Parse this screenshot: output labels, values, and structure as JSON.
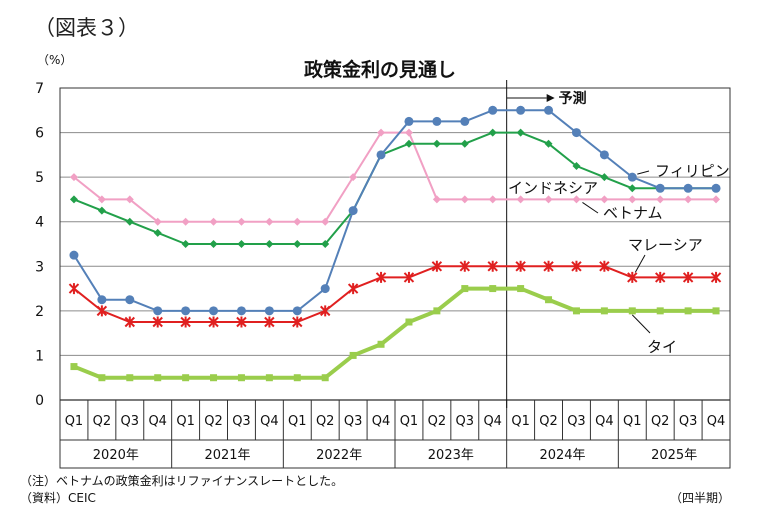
{
  "figure_label": "（図表３）",
  "chart_data": {
    "type": "line",
    "title": "政策金利の見通し",
    "yunit": "（%）",
    "ylim": [
      0,
      7
    ],
    "yticks": [
      0,
      1,
      2,
      3,
      4,
      5,
      6,
      7
    ],
    "grid": true,
    "quarters": [
      "Q1",
      "Q2",
      "Q3",
      "Q4",
      "Q1",
      "Q2",
      "Q3",
      "Q4",
      "Q1",
      "Q2",
      "Q3",
      "Q4",
      "Q1",
      "Q2",
      "Q3",
      "Q4",
      "Q1",
      "Q2",
      "Q3",
      "Q4",
      "Q1",
      "Q2",
      "Q3",
      "Q4"
    ],
    "years": [
      "2020年",
      "2021年",
      "2022年",
      "2023年",
      "2024年",
      "2025年"
    ],
    "forecast_label": "予測",
    "forecast_start_index": 16,
    "series": [
      {
        "name": "フィリピン",
        "color": "#5480b8",
        "marker": "circle",
        "width": 2,
        "values": [
          3.25,
          2.25,
          2.25,
          2.0,
          2.0,
          2.0,
          2.0,
          2.0,
          2.0,
          2.5,
          4.25,
          5.5,
          6.25,
          6.25,
          6.25,
          6.5,
          6.5,
          6.5,
          6.0,
          5.5,
          5.0,
          4.75,
          4.75,
          4.75
        ]
      },
      {
        "name": "インドネシア",
        "color": "#22a04a",
        "marker": "diamond",
        "width": 2,
        "values": [
          4.5,
          4.25,
          4.0,
          3.75,
          3.5,
          3.5,
          3.5,
          3.5,
          3.5,
          3.5,
          4.25,
          5.5,
          5.75,
          5.75,
          5.75,
          6.0,
          6.0,
          5.75,
          5.25,
          5.0,
          4.75,
          4.75,
          4.75,
          4.75
        ]
      },
      {
        "name": "ベトナム",
        "color": "#f1a0c4",
        "marker": "diamond",
        "width": 2,
        "values": [
          5.0,
          4.5,
          4.5,
          4.0,
          4.0,
          4.0,
          4.0,
          4.0,
          4.0,
          4.0,
          5.0,
          6.0,
          6.0,
          4.5,
          4.5,
          4.5,
          4.5,
          4.5,
          4.5,
          4.5,
          4.5,
          4.5,
          4.5,
          4.5
        ]
      },
      {
        "name": "マレーシア",
        "color": "#e02020",
        "marker": "star",
        "width": 2,
        "values": [
          2.5,
          2.0,
          1.75,
          1.75,
          1.75,
          1.75,
          1.75,
          1.75,
          1.75,
          2.0,
          2.5,
          2.75,
          2.75,
          3.0,
          3.0,
          3.0,
          3.0,
          3.0,
          3.0,
          3.0,
          2.75,
          2.75,
          2.75,
          2.75
        ]
      },
      {
        "name": "タイ",
        "color": "#9acd4c",
        "marker": "square",
        "width": 4,
        "values": [
          0.75,
          0.5,
          0.5,
          0.5,
          0.5,
          0.5,
          0.5,
          0.5,
          0.5,
          0.5,
          1.0,
          1.25,
          1.75,
          2.0,
          2.5,
          2.5,
          2.5,
          2.25,
          2.0,
          2.0,
          2.0,
          2.0,
          2.0,
          2.0
        ]
      }
    ],
    "notes": {
      "note": "（注）ベトナムの政策金利はリファイナンスレートとした。",
      "source": "（資料）CEIC",
      "period": "（四半期）"
    }
  }
}
